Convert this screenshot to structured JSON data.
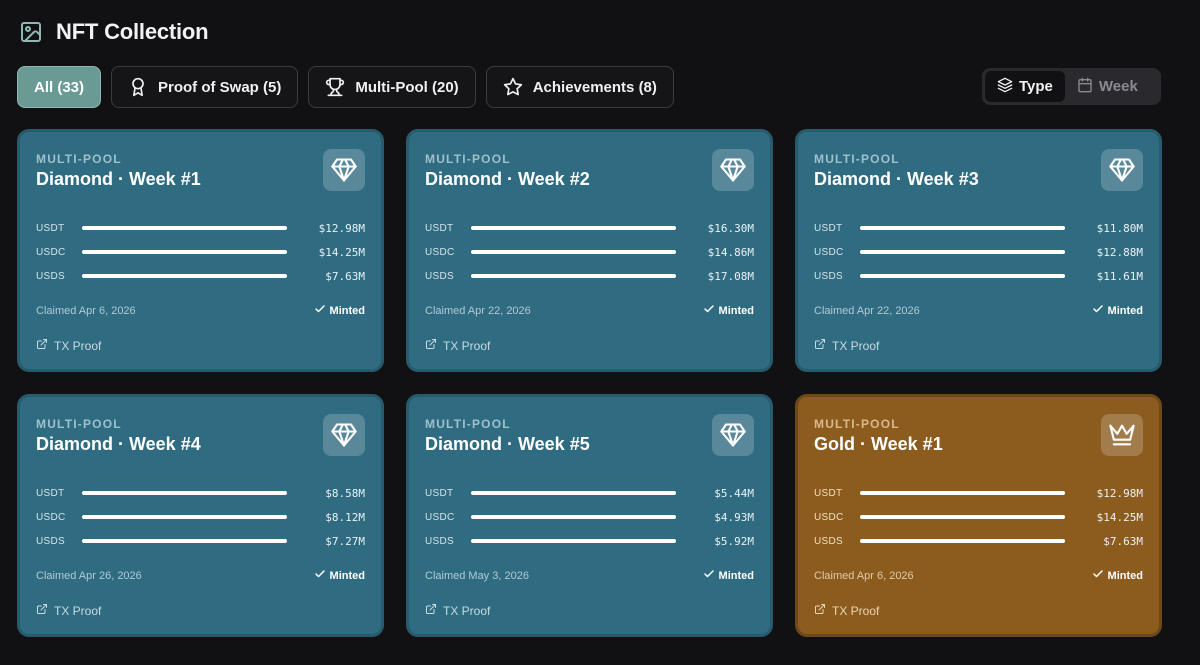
{
  "header": {
    "title": "NFT Collection",
    "icon": "image-icon"
  },
  "filters": [
    {
      "label": "All (33)",
      "icon": "",
      "active": true
    },
    {
      "label": "Proof of Swap (5)",
      "icon": "award-ribbon-icon",
      "active": false
    },
    {
      "label": "Multi-Pool (20)",
      "icon": "trophy-icon",
      "active": false
    },
    {
      "label": "Achievements (8)",
      "icon": "star-icon",
      "active": false
    }
  ],
  "view_toggle": {
    "type_label": "Type",
    "type_icon": "layers-icon",
    "type_active": true,
    "week_label": "Week",
    "week_icon": "calendar-icon"
  },
  "colors": {
    "card_teal": "#2f6b81",
    "card_gold": "#8c5c1f",
    "active_filter": "#6a9a94",
    "background": "#111114"
  },
  "cards": [
    {
      "type": "MULTI-POOL",
      "name": "Diamond · Week #1",
      "icon": "diamond-icon",
      "theme": "teal",
      "rows": [
        {
          "token": "USDT",
          "amount": "$12.98M"
        },
        {
          "token": "USDC",
          "amount": "$14.25M"
        },
        {
          "token": "USDS",
          "amount": "$7.63M"
        }
      ],
      "claimed": "Claimed Apr 6, 2026",
      "status": "Minted",
      "proof": "TX Proof"
    },
    {
      "type": "MULTI-POOL",
      "name": "Diamond · Week #2",
      "icon": "diamond-icon",
      "theme": "teal",
      "rows": [
        {
          "token": "USDT",
          "amount": "$16.30M"
        },
        {
          "token": "USDC",
          "amount": "$14.86M"
        },
        {
          "token": "USDS",
          "amount": "$17.08M"
        }
      ],
      "claimed": "Claimed Apr 22, 2026",
      "status": "Minted",
      "proof": "TX Proof"
    },
    {
      "type": "MULTI-POOL",
      "name": "Diamond · Week #3",
      "icon": "diamond-icon",
      "theme": "teal",
      "rows": [
        {
          "token": "USDT",
          "amount": "$11.80M"
        },
        {
          "token": "USDC",
          "amount": "$12.88M"
        },
        {
          "token": "USDS",
          "amount": "$11.61M"
        }
      ],
      "claimed": "Claimed Apr 22, 2026",
      "status": "Minted",
      "proof": "TX Proof"
    },
    {
      "type": "MULTI-POOL",
      "name": "Diamond · Week #4",
      "icon": "diamond-icon",
      "theme": "teal",
      "rows": [
        {
          "token": "USDT",
          "amount": "$8.58M"
        },
        {
          "token": "USDC",
          "amount": "$8.12M"
        },
        {
          "token": "USDS",
          "amount": "$7.27M"
        }
      ],
      "claimed": "Claimed Apr 26, 2026",
      "status": "Minted",
      "proof": "TX Proof"
    },
    {
      "type": "MULTI-POOL",
      "name": "Diamond · Week #5",
      "icon": "diamond-icon",
      "theme": "teal",
      "rows": [
        {
          "token": "USDT",
          "amount": "$5.44M"
        },
        {
          "token": "USDC",
          "amount": "$4.93M"
        },
        {
          "token": "USDS",
          "amount": "$5.92M"
        }
      ],
      "claimed": "Claimed May 3, 2026",
      "status": "Minted",
      "proof": "TX Proof"
    },
    {
      "type": "MULTI-POOL",
      "name": "Gold · Week #1",
      "icon": "crown-icon",
      "theme": "gold",
      "rows": [
        {
          "token": "USDT",
          "amount": "$12.98M"
        },
        {
          "token": "USDC",
          "amount": "$14.25M"
        },
        {
          "token": "USDS",
          "amount": "$7.63M"
        }
      ],
      "claimed": "Claimed Apr 6, 2026",
      "status": "Minted",
      "proof": "TX Proof"
    }
  ]
}
